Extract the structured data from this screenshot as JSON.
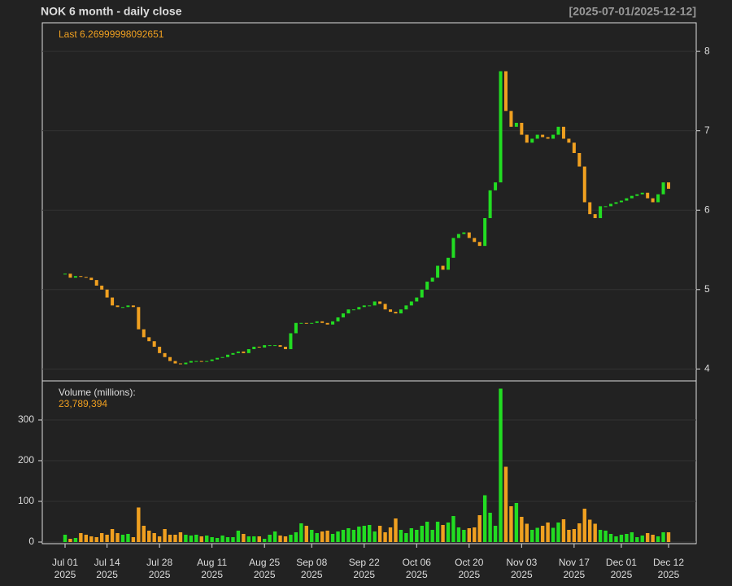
{
  "chart_data": {
    "type": "candlestick",
    "title": "NOK  6 month - daily close",
    "date_range": "[2025-07-01/2025-12-12]",
    "last_annotation": "Last 6.26999998092651",
    "volume_title": "Volume (millions):",
    "volume_annotation": "23,789,394",
    "categories": [
      "Jul 01\n2025",
      null,
      null,
      null,
      null,
      null,
      null,
      null,
      "Jul 14\n2025",
      null,
      null,
      null,
      null,
      null,
      null,
      null,
      null,
      null,
      "Jul 28\n2025",
      null,
      null,
      null,
      null,
      null,
      null,
      null,
      null,
      null,
      "Aug 11\n2025",
      null,
      null,
      null,
      null,
      null,
      null,
      null,
      null,
      null,
      "Aug 25\n2025",
      null,
      null,
      null,
      null,
      null,
      null,
      null,
      null,
      "Sep 08\n2025",
      null,
      null,
      null,
      null,
      null,
      null,
      null,
      null,
      null,
      "Sep 22\n2025",
      null,
      null,
      null,
      null,
      null,
      null,
      null,
      null,
      null,
      "Oct 06\n2025",
      null,
      null,
      null,
      null,
      null,
      null,
      null,
      null,
      null,
      "Oct 20\n2025",
      null,
      null,
      null,
      null,
      null,
      null,
      null,
      null,
      null,
      "Nov 03\n2025",
      null,
      null,
      null,
      null,
      null,
      null,
      null,
      null,
      null,
      "Nov 17\n2025",
      null,
      null,
      null,
      null,
      null,
      null,
      null,
      null,
      "Dec 01\n2025",
      null,
      null,
      null,
      null,
      null,
      null,
      null,
      null,
      "Dec 12\n2025"
    ],
    "values": [
      5.2,
      5.15,
      5.17,
      5.16,
      5.15,
      5.12,
      5.05,
      5.0,
      4.9,
      4.8,
      4.78,
      4.78,
      4.8,
      4.78,
      4.5,
      4.4,
      4.35,
      4.28,
      4.2,
      4.15,
      4.1,
      4.07,
      4.06,
      4.08,
      4.1,
      4.1,
      4.09,
      4.1,
      4.12,
      4.14,
      4.15,
      4.18,
      4.2,
      4.22,
      4.2,
      4.25,
      4.28,
      4.27,
      4.3,
      4.3,
      4.3,
      4.28,
      4.25,
      4.45,
      4.58,
      4.58,
      4.57,
      4.58,
      4.6,
      4.58,
      4.56,
      4.6,
      4.65,
      4.7,
      4.75,
      4.75,
      4.78,
      4.8,
      4.8,
      4.85,
      4.82,
      4.75,
      4.72,
      4.7,
      4.75,
      4.8,
      4.85,
      4.9,
      5.0,
      5.1,
      5.15,
      5.3,
      5.25,
      5.4,
      5.65,
      5.7,
      5.72,
      5.65,
      5.6,
      5.55,
      5.9,
      6.25,
      6.35,
      7.75,
      7.25,
      7.05,
      7.1,
      6.95,
      6.85,
      6.9,
      6.95,
      6.92,
      6.9,
      6.95,
      7.05,
      6.9,
      6.85,
      6.72,
      6.55,
      6.1,
      5.95,
      5.9,
      6.05,
      6.05,
      6.08,
      6.1,
      6.12,
      6.15,
      6.18,
      6.2,
      6.22,
      6.15,
      6.1,
      6.2,
      6.35,
      6.27
    ],
    "volume": [
      18,
      8,
      10,
      22,
      18,
      14,
      12,
      22,
      18,
      32,
      22,
      18,
      20,
      12,
      85,
      40,
      28,
      22,
      14,
      32,
      18,
      18,
      24,
      18,
      16,
      18,
      14,
      16,
      12,
      10,
      16,
      12,
      12,
      28,
      20,
      14,
      14,
      14,
      8,
      18,
      26,
      16,
      14,
      18,
      24,
      46,
      40,
      30,
      22,
      26,
      28,
      20,
      26,
      30,
      34,
      30,
      38,
      40,
      42,
      26,
      40,
      24,
      36,
      58,
      30,
      22,
      34,
      30,
      40,
      50,
      30,
      50,
      42,
      48,
      64,
      36,
      30,
      34,
      36,
      66,
      115,
      72,
      40,
      377,
      185,
      88,
      96,
      62,
      45,
      30,
      35,
      40,
      48,
      35,
      48,
      56,
      30,
      32,
      46,
      82,
      55,
      45,
      30,
      28,
      20,
      14,
      18,
      20,
      24,
      12,
      16,
      22,
      18,
      14,
      24,
      24
    ],
    "up_color": "#22dd22",
    "down_color": "#f0a020",
    "ylim": [
      3.85,
      8.36
    ],
    "yticks": [
      4,
      5,
      6,
      7,
      8
    ],
    "volume_ylim": [
      -4,
      396
    ],
    "volume_yticks": [
      0,
      100,
      200,
      300
    ],
    "grid": true
  }
}
